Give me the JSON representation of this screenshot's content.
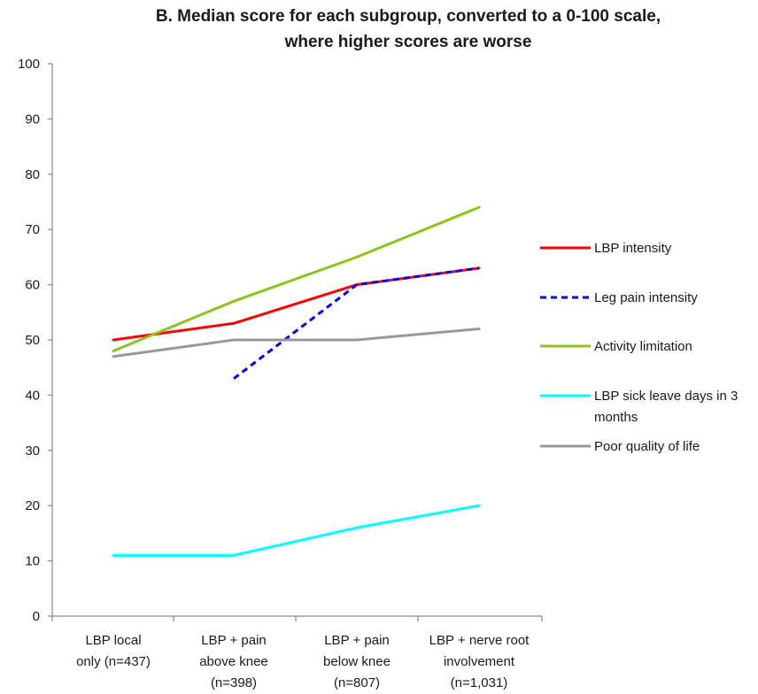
{
  "chart_data": {
    "type": "line",
    "title": "B. Median score for each subgroup, converted to a 0-100 scale, where higher scores are worse",
    "title_lines": [
      "B. Median score for each subgroup, converted to a 0-100 scale,",
      "where higher scores are worse"
    ],
    "categories": [
      [
        "LBP local",
        "only (n=437)"
      ],
      [
        "LBP + pain",
        "above knee",
        "(n=398)"
      ],
      [
        "LBP + pain",
        "below knee",
        "(n=807)"
      ],
      [
        "LBP + nerve root",
        "involvement",
        "(n=1,031)"
      ]
    ],
    "xlabel": "",
    "ylabel": "",
    "ylim": [
      0,
      100
    ],
    "yticks": [
      "0",
      "10",
      "20",
      "30",
      "40",
      "50",
      "60",
      "70",
      "80",
      "90",
      "100"
    ],
    "grid": false,
    "legend_position": "right",
    "series": [
      {
        "name": "LBP intensity",
        "legend_lines": [
          "LBP intensity"
        ],
        "values": [
          50,
          53,
          60,
          63
        ],
        "color": "#ff0000",
        "dash": "solid"
      },
      {
        "name": "Leg pain intensity",
        "legend_lines": [
          "Leg pain intensity"
        ],
        "values": [
          null,
          43,
          60,
          63
        ],
        "color": "#0000ee",
        "dash": "dashed"
      },
      {
        "name": "Activity limitation",
        "legend_lines": [
          "Activity limitation"
        ],
        "values": [
          48,
          57,
          65,
          74
        ],
        "color": "#8cc41c",
        "dash": "solid"
      },
      {
        "name": "LBP sick leave days in 3 months",
        "legend_lines": [
          "LBP sick leave days in 3",
          "months"
        ],
        "values": [
          11,
          11,
          16,
          20
        ],
        "color": "#00ffff",
        "dash": "solid"
      },
      {
        "name": "Poor quality of life",
        "legend_lines": [
          "Poor quality of life"
        ],
        "values": [
          47,
          50,
          50,
          52
        ],
        "color": "#999999",
        "dash": "solid"
      }
    ]
  }
}
